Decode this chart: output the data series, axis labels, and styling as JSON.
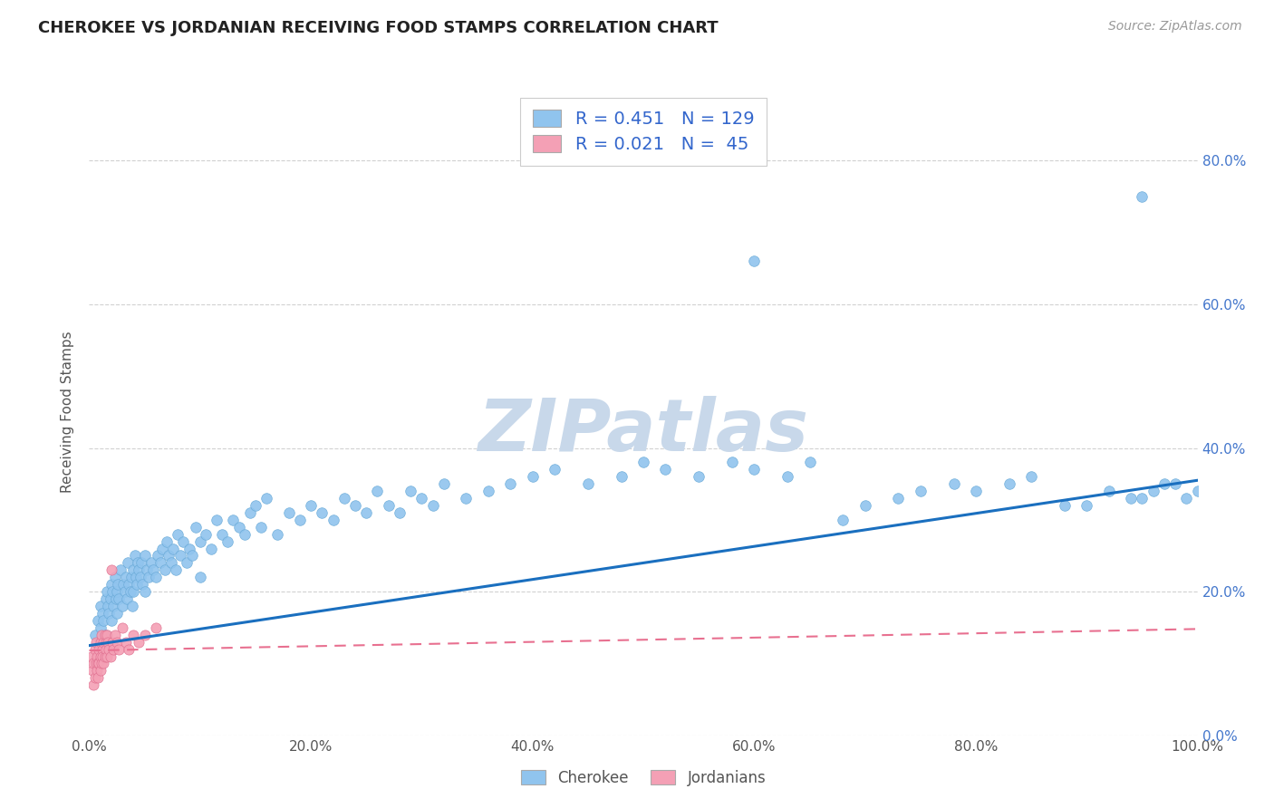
{
  "title": "CHEROKEE VS JORDANIAN RECEIVING FOOD STAMPS CORRELATION CHART",
  "source": "Source: ZipAtlas.com",
  "ylabel": "Receiving Food Stamps",
  "cherokee_R": 0.451,
  "cherokee_N": 129,
  "jordanian_R": 0.021,
  "jordanian_N": 45,
  "cherokee_color": "#90C4EE",
  "cherokee_edge_color": "#6AAAD8",
  "jordanian_color": "#F4A0B5",
  "jordanian_edge_color": "#E07090",
  "cherokee_line_color": "#1A6FBF",
  "jordanian_line_color": "#E87090",
  "watermark_color": "#C8D8EA",
  "xlim": [
    0.0,
    1.0
  ],
  "ylim": [
    0.0,
    0.9
  ],
  "background_color": "#FFFFFF",
  "grid_color": "#CCCCCC",
  "xticks": [
    0.0,
    0.2,
    0.4,
    0.6,
    0.8,
    1.0
  ],
  "yticks_right": [
    0.0,
    0.2,
    0.4,
    0.6,
    0.8
  ],
  "cherokee_x": [
    0.005,
    0.008,
    0.01,
    0.01,
    0.012,
    0.013,
    0.015,
    0.015,
    0.016,
    0.017,
    0.018,
    0.019,
    0.02,
    0.02,
    0.021,
    0.022,
    0.023,
    0.024,
    0.025,
    0.025,
    0.026,
    0.027,
    0.028,
    0.03,
    0.031,
    0.032,
    0.033,
    0.034,
    0.035,
    0.036,
    0.037,
    0.038,
    0.039,
    0.04,
    0.04,
    0.041,
    0.042,
    0.043,
    0.044,
    0.045,
    0.046,
    0.047,
    0.048,
    0.05,
    0.05,
    0.052,
    0.054,
    0.056,
    0.058,
    0.06,
    0.062,
    0.064,
    0.066,
    0.068,
    0.07,
    0.072,
    0.074,
    0.076,
    0.078,
    0.08,
    0.082,
    0.085,
    0.088,
    0.09,
    0.093,
    0.096,
    0.1,
    0.1,
    0.105,
    0.11,
    0.115,
    0.12,
    0.125,
    0.13,
    0.135,
    0.14,
    0.145,
    0.15,
    0.155,
    0.16,
    0.17,
    0.18,
    0.19,
    0.2,
    0.21,
    0.22,
    0.23,
    0.24,
    0.25,
    0.26,
    0.27,
    0.28,
    0.29,
    0.3,
    0.31,
    0.32,
    0.34,
    0.36,
    0.38,
    0.4,
    0.42,
    0.45,
    0.48,
    0.5,
    0.52,
    0.55,
    0.58,
    0.6,
    0.63,
    0.65,
    0.68,
    0.7,
    0.73,
    0.75,
    0.78,
    0.8,
    0.83,
    0.85,
    0.88,
    0.9,
    0.92,
    0.94,
    0.95,
    0.96,
    0.97,
    0.98,
    0.99,
    1.0,
    0.6,
    0.95
  ],
  "cherokee_y": [
    0.14,
    0.16,
    0.18,
    0.15,
    0.17,
    0.16,
    0.19,
    0.14,
    0.2,
    0.18,
    0.17,
    0.19,
    0.21,
    0.16,
    0.2,
    0.18,
    0.22,
    0.19,
    0.2,
    0.17,
    0.21,
    0.19,
    0.23,
    0.18,
    0.21,
    0.2,
    0.22,
    0.19,
    0.24,
    0.21,
    0.2,
    0.22,
    0.18,
    0.23,
    0.2,
    0.25,
    0.22,
    0.21,
    0.24,
    0.23,
    0.22,
    0.24,
    0.21,
    0.25,
    0.2,
    0.23,
    0.22,
    0.24,
    0.23,
    0.22,
    0.25,
    0.24,
    0.26,
    0.23,
    0.27,
    0.25,
    0.24,
    0.26,
    0.23,
    0.28,
    0.25,
    0.27,
    0.24,
    0.26,
    0.25,
    0.29,
    0.27,
    0.22,
    0.28,
    0.26,
    0.3,
    0.28,
    0.27,
    0.3,
    0.29,
    0.28,
    0.31,
    0.32,
    0.29,
    0.33,
    0.28,
    0.31,
    0.3,
    0.32,
    0.31,
    0.3,
    0.33,
    0.32,
    0.31,
    0.34,
    0.32,
    0.31,
    0.34,
    0.33,
    0.32,
    0.35,
    0.33,
    0.34,
    0.35,
    0.36,
    0.37,
    0.35,
    0.36,
    0.38,
    0.37,
    0.36,
    0.38,
    0.37,
    0.36,
    0.38,
    0.3,
    0.32,
    0.33,
    0.34,
    0.35,
    0.34,
    0.35,
    0.36,
    0.32,
    0.32,
    0.34,
    0.33,
    0.33,
    0.34,
    0.35,
    0.35,
    0.33,
    0.34,
    0.66,
    0.75
  ],
  "jordanian_x": [
    0.002,
    0.003,
    0.004,
    0.004,
    0.005,
    0.005,
    0.006,
    0.006,
    0.007,
    0.007,
    0.008,
    0.008,
    0.009,
    0.009,
    0.01,
    0.01,
    0.01,
    0.011,
    0.011,
    0.012,
    0.012,
    0.013,
    0.013,
    0.014,
    0.014,
    0.015,
    0.015,
    0.016,
    0.016,
    0.017,
    0.018,
    0.019,
    0.02,
    0.021,
    0.022,
    0.023,
    0.025,
    0.027,
    0.03,
    0.033,
    0.036,
    0.04,
    0.045,
    0.05,
    0.06
  ],
  "jordanian_y": [
    0.11,
    0.09,
    0.1,
    0.07,
    0.12,
    0.08,
    0.1,
    0.13,
    0.09,
    0.11,
    0.1,
    0.08,
    0.12,
    0.1,
    0.13,
    0.11,
    0.09,
    0.14,
    0.1,
    0.12,
    0.11,
    0.13,
    0.1,
    0.14,
    0.11,
    0.13,
    0.12,
    0.14,
    0.11,
    0.13,
    0.12,
    0.11,
    0.23,
    0.13,
    0.12,
    0.14,
    0.13,
    0.12,
    0.15,
    0.13,
    0.12,
    0.14,
    0.13,
    0.14,
    0.15
  ],
  "cherokee_trend_x": [
    0.0,
    1.0
  ],
  "cherokee_trend_y": [
    0.125,
    0.355
  ],
  "jordanian_trend_x": [
    0.0,
    1.0
  ],
  "jordanian_trend_y": [
    0.118,
    0.148
  ]
}
